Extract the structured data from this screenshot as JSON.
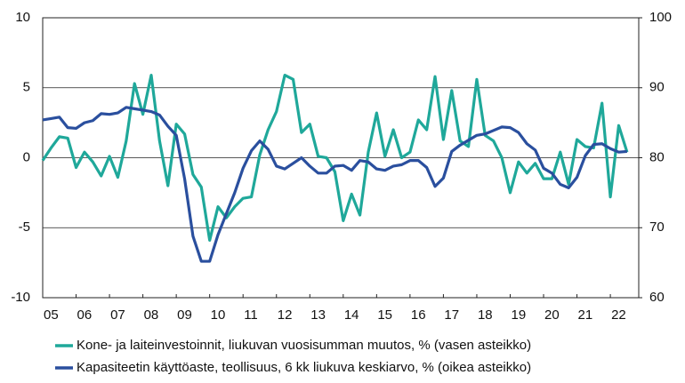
{
  "chart_data": {
    "type": "line",
    "x": [
      2005,
      2005.25,
      2005.5,
      2005.75,
      2006,
      2006.25,
      2006.5,
      2006.75,
      2007,
      2007.25,
      2007.5,
      2007.75,
      2008,
      2008.25,
      2008.5,
      2008.75,
      2009,
      2009.25,
      2009.5,
      2009.75,
      2010,
      2010.25,
      2010.5,
      2010.75,
      2011,
      2011.25,
      2011.5,
      2011.75,
      2012,
      2012.25,
      2012.5,
      2012.75,
      2013,
      2013.25,
      2013.5,
      2013.75,
      2014,
      2014.25,
      2014.5,
      2014.75,
      2015,
      2015.25,
      2015.5,
      2015.75,
      2016,
      2016.25,
      2016.5,
      2016.75,
      2017,
      2017.25,
      2017.5,
      2017.75,
      2018,
      2018.25,
      2018.5,
      2018.75,
      2019,
      2019.25,
      2019.5,
      2019.75,
      2020,
      2020.25,
      2020.5,
      2020.75,
      2021,
      2021.25,
      2021.5,
      2021.75,
      2022,
      2022.25,
      2022.5
    ],
    "series": [
      {
        "name": "Kone- ja laiteinvestoinnit, liukuvan vuosisumman muutos, % (vasen asteikko)",
        "color": "#1fa89a",
        "values": [
          -0.2,
          0.7,
          1.5,
          1.4,
          -0.7,
          0.4,
          -0.3,
          -1.3,
          0.1,
          -1.4,
          1.2,
          5.3,
          3.1,
          5.9,
          1.2,
          -2.0,
          2.4,
          1.7,
          -1.2,
          -2.1,
          -5.9,
          -3.5,
          -4.3,
          -3.5,
          -2.9,
          -2.8,
          0.2,
          2.0,
          3.3,
          5.9,
          5.6,
          1.8,
          2.4,
          0.1,
          0.0,
          -1.0,
          -4.5,
          -2.6,
          -4.1,
          0.4,
          3.2,
          0.1,
          2.0,
          0.0,
          0.4,
          2.7,
          2.0,
          5.8,
          1.3,
          4.8,
          1.2,
          0.8,
          5.6,
          1.6,
          1.2,
          0.0,
          -2.5,
          -0.3,
          -1.1,
          -0.4,
          -1.5,
          -1.5,
          0.4,
          -1.9,
          1.3,
          0.8,
          0.7,
          3.9,
          -2.8,
          2.3,
          0.4
        ]
      },
      {
        "name": "Kapasiteetin käyttöaste, teollisuus, 6 kk liukuva keskiarvo, % (oikea asteikko)",
        "color": "#2a4f9e",
        "axis": "y2",
        "values": [
          85.4,
          85.6,
          85.8,
          84.3,
          84.2,
          85.0,
          85.3,
          86.3,
          86.2,
          86.4,
          87.2,
          87.0,
          86.8,
          86.6,
          86.1,
          84.5,
          83.2,
          77.0,
          68.8,
          65.2,
          65.2,
          69.0,
          72.0,
          75.0,
          78.5,
          81.0,
          82.4,
          81.2,
          78.8,
          78.4,
          79.2,
          80.0,
          78.8,
          77.8,
          77.8,
          78.8,
          78.9,
          78.2,
          79.6,
          79.4,
          78.4,
          78.2,
          78.8,
          79.0,
          79.6,
          79.6,
          78.6,
          75.9,
          77.1,
          80.9,
          81.8,
          82.5,
          83.2,
          83.4,
          83.9,
          84.4,
          84.3,
          83.6,
          82.0,
          81.1,
          78.5,
          77.8,
          76.2,
          75.7,
          77.2,
          80.3,
          81.9,
          82.0,
          81.3,
          80.8,
          80.9
        ]
      }
    ],
    "xlim": [
      2005,
      2022.85
    ],
    "xticks": [
      {
        "value": 2005,
        "label": "05"
      },
      {
        "value": 2006,
        "label": "06"
      },
      {
        "value": 2007,
        "label": "07"
      },
      {
        "value": 2008,
        "label": "08"
      },
      {
        "value": 2009,
        "label": "09"
      },
      {
        "value": 2010,
        "label": "10"
      },
      {
        "value": 2011,
        "label": "11"
      },
      {
        "value": 2012,
        "label": "12"
      },
      {
        "value": 2013,
        "label": "13"
      },
      {
        "value": 2014,
        "label": "14"
      },
      {
        "value": 2015,
        "label": "15"
      },
      {
        "value": 2016,
        "label": "16"
      },
      {
        "value": 2017,
        "label": "17"
      },
      {
        "value": 2018,
        "label": "18"
      },
      {
        "value": 2019,
        "label": "19"
      },
      {
        "value": 2020,
        "label": "20"
      },
      {
        "value": 2021,
        "label": "21"
      },
      {
        "value": 2022,
        "label": "22"
      }
    ],
    "ylim": [
      -10,
      10
    ],
    "yticks": [
      -10,
      -5,
      0,
      5,
      10
    ],
    "y2lim": [
      60,
      100
    ],
    "y2ticks": [
      60,
      70,
      80,
      90,
      100
    ],
    "grid": true
  }
}
